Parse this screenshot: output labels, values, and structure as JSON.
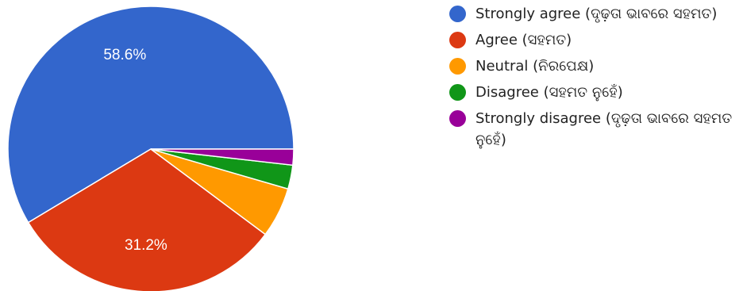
{
  "chart_data": {
    "type": "pie",
    "start_angle_deg": 0,
    "direction": "counterclockwise",
    "legend_position": "right",
    "slices": [
      {
        "label": "Strongly agree (ଦୃଢ଼ତା ଭାବରେ ସହମତ)",
        "value": 58.6,
        "value_label": "58.6%",
        "color": "#3366cc"
      },
      {
        "label": "Agree (ସହମତ)",
        "value": 31.2,
        "value_label": "31.2%",
        "color": "#dc3912"
      },
      {
        "label": "Neutral (ନିରପେକ୍ଷ)",
        "value": 5.7,
        "value_label": "",
        "color": "#ff9900"
      },
      {
        "label": "Disagree (ସହମତ ନୁହେଁ)",
        "value": 2.7,
        "value_label": "",
        "color": "#109618"
      },
      {
        "label": "Strongly disagree (ଦୃଢ଼ତା ଭାବରେ ସହମତ ନୁହେଁ)",
        "value": 1.8,
        "value_label": "",
        "color": "#990099"
      }
    ]
  }
}
